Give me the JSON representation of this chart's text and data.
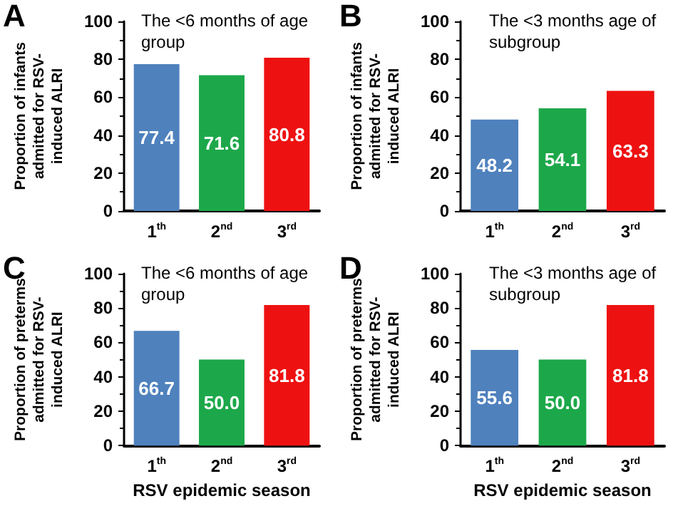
{
  "chart_data": [
    {
      "type": "bar",
      "title": "The <6 months of age group",
      "ylabel": "Proportion of infants admitted for RSV-induced ALRI",
      "annotations": [
        "A"
      ],
      "categories": [
        "1$^{th}$",
        "2$^{nd}$",
        "3$^{rd}$"
      ],
      "values": [
        77.4,
        71.6,
        80.8
      ],
      "value_labels": [
        "77.4",
        "71.6",
        "80.8"
      ],
      "colors": [
        "#4f81bd",
        "#1ca84a",
        "#ee1111"
      ],
      "ylim": [
        0,
        100
      ],
      "yticks": [
        0,
        20,
        40,
        60,
        80,
        100
      ],
      "grid": false
    },
    {
      "type": "bar",
      "title": "The <3 months age of subgroup",
      "ylabel": "Proportion of infants admitted for RSV-induced ALRI",
      "annotations": [
        "B"
      ],
      "categories": [
        "1$^{th}$",
        "2$^{nd}$",
        "3$^{rd}$"
      ],
      "values": [
        48.2,
        54.1,
        63.3
      ],
      "value_labels": [
        "48.2",
        "54.1",
        "63.3"
      ],
      "colors": [
        "#4f81bd",
        "#1ca84a",
        "#ee1111"
      ],
      "ylim": [
        0,
        100
      ],
      "yticks": [
        0,
        20,
        40,
        60,
        80,
        100
      ],
      "grid": false
    },
    {
      "type": "bar",
      "title": "The <6 months of age group",
      "ylabel": "Proportion of preterms admitted for RSV-induced ALRI",
      "xlabel": "RSV epidemic season",
      "annotations": [
        "C"
      ],
      "categories": [
        "1$^{th}$",
        "2$^{nd}$",
        "3$^{rd}$"
      ],
      "values": [
        66.7,
        50.0,
        81.8
      ],
      "value_labels": [
        "66.7",
        "50.0",
        "81.8"
      ],
      "colors": [
        "#4f81bd",
        "#1ca84a",
        "#ee1111"
      ],
      "ylim": [
        0,
        100
      ],
      "yticks": [
        0,
        20,
        40,
        60,
        80,
        100
      ],
      "grid": false
    },
    {
      "type": "bar",
      "title": "The <3 months age of subgroup",
      "ylabel": "Proportion of preterms admitted for RSV-induced ALRI",
      "xlabel": "RSV epidemic season",
      "annotations": [
        "D"
      ],
      "categories": [
        "1$^{th}$",
        "2$^{nd}$",
        "3$^{rd}$"
      ],
      "values": [
        55.6,
        50.0,
        81.8
      ],
      "value_labels": [
        "55.6",
        "50.0",
        "81.8"
      ],
      "colors": [
        "#4f81bd",
        "#1ca84a",
        "#ee1111"
      ],
      "ylim": [
        0,
        100
      ],
      "yticks": [
        0,
        20,
        40,
        60,
        80,
        100
      ],
      "grid": false
    }
  ]
}
